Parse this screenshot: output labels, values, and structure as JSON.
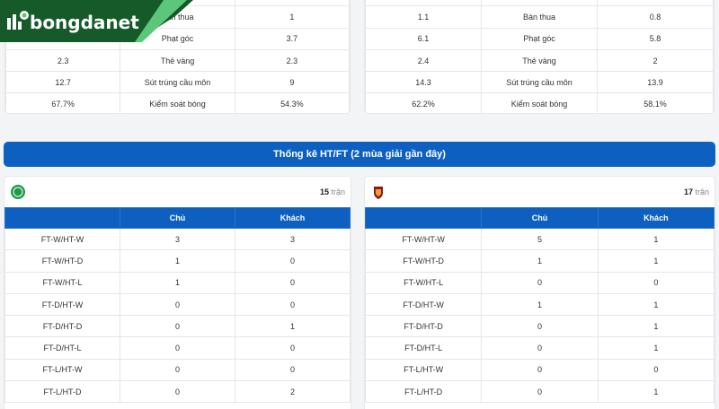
{
  "brand": {
    "name": "bongdanet",
    "bg": "#165a2a",
    "accent": "#5cc77a"
  },
  "season_stats": [
    {
      "rows": [
        [
          "",
          "",
          "",
          ""
        ],
        [
          "",
          "Bàn thua",
          "1"
        ],
        [
          "",
          "Phạt góc",
          "3.7"
        ],
        [
          "2.3",
          "Thẻ vàng",
          "2.3"
        ],
        [
          "12.7",
          "Sút trúng cầu môn",
          "9"
        ],
        [
          "67.7%",
          "Kiểm soát bóng",
          "54.3%"
        ]
      ]
    },
    {
      "rows": [
        [
          "",
          "",
          "",
          ""
        ],
        [
          "1.1",
          "Bàn thua",
          "0.8"
        ],
        [
          "6.1",
          "Phạt góc",
          "5.8"
        ],
        [
          "2.4",
          "Thẻ vàng",
          "2"
        ],
        [
          "14.3",
          "Sút trúng cầu môn",
          "13.9"
        ],
        [
          "62.2%",
          "Kiểm soát bóng",
          "58.1%"
        ]
      ]
    }
  ],
  "htft": {
    "title": "Thống kê HT/FT (2 mùa giải gần đây)",
    "columns": [
      "",
      "Chủ",
      "Khách"
    ],
    "teams": [
      {
        "logo": "celtic-crest-icon",
        "matches": "15",
        "matches_unit": "trận",
        "rows": [
          [
            "FT-W/HT-W",
            "3",
            "3"
          ],
          [
            "FT-W/HT-D",
            "1",
            "0"
          ],
          [
            "FT-W/HT-L",
            "1",
            "0"
          ],
          [
            "FT-D/HT-W",
            "0",
            "0"
          ],
          [
            "FT-D/HT-D",
            "0",
            "1"
          ],
          [
            "FT-D/HT-L",
            "0",
            "0"
          ],
          [
            "FT-L/HT-W",
            "0",
            "0"
          ],
          [
            "FT-L/HT-D",
            "0",
            "2"
          ]
        ]
      },
      {
        "logo": "roma-crest-icon",
        "matches": "17",
        "matches_unit": "trận",
        "rows": [
          [
            "FT-W/HT-W",
            "5",
            "1"
          ],
          [
            "FT-W/HT-D",
            "1",
            "1"
          ],
          [
            "FT-W/HT-L",
            "0",
            "0"
          ],
          [
            "FT-D/HT-W",
            "1",
            "1"
          ],
          [
            "FT-D/HT-D",
            "0",
            "1"
          ],
          [
            "FT-D/HT-L",
            "0",
            "1"
          ],
          [
            "FT-L/HT-W",
            "0",
            "0"
          ],
          [
            "FT-L/HT-D",
            "0",
            "1"
          ]
        ]
      }
    ]
  }
}
